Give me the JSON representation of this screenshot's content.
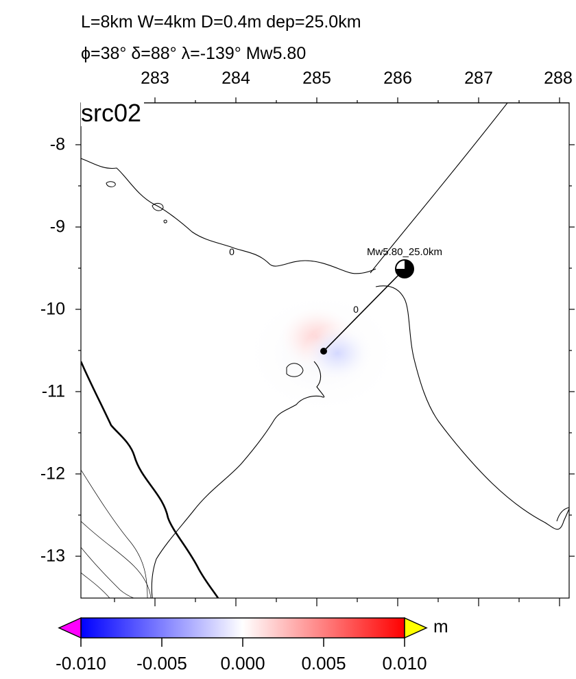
{
  "header": {
    "line1": "L=8km W=4km D=0.4m dep=25.0km",
    "line2": "ϕ=38° δ=88° λ=-139° Mw5.80"
  },
  "panel_label": "src02",
  "axes": {
    "x_ticks": [
      "283",
      "284",
      "285",
      "286",
      "287",
      "288"
    ],
    "y_ticks": [
      "-8",
      "-9",
      "-10",
      "-11",
      "-12",
      "-13"
    ]
  },
  "map": {
    "contour_labels": [
      "0",
      "0"
    ],
    "mechanism_label": "Mw5.80_25.0km",
    "colors": {
      "positive": "#ff0000",
      "negative": "#0000ff",
      "mechanism_fill": "#000000"
    }
  },
  "colorbar": {
    "ticks": [
      "-0.010",
      "-0.005",
      "0.000",
      "0.005",
      "0.010"
    ],
    "unit": "m",
    "colors": {
      "low": "#0000ff",
      "mid": "#ffffff",
      "high": "#ff0000",
      "below": "#ff00ff",
      "above": "#ffff00"
    }
  }
}
